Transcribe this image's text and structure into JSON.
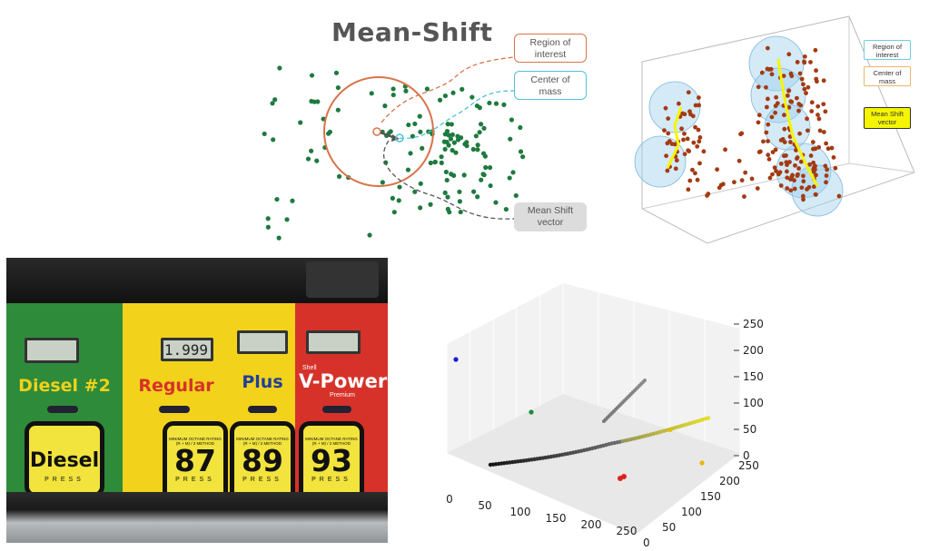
{
  "mean_shift_2d": {
    "title": "Mean-Shift",
    "region_label": "Region of interest",
    "center_label": "Center of mass",
    "vector_label": "Mean Shift vector",
    "colors": {
      "points": "#1e7a3f",
      "region": "#d9734a",
      "center": "#4fc3d6"
    }
  },
  "mean_shift_3d": {
    "legend": [
      "Region of interest",
      "Center of mass",
      "Mean Shift vector"
    ],
    "colors": {
      "points": "#a33a12",
      "spheres": "#9fd0ee",
      "path": "#f5f500"
    }
  },
  "pump": {
    "grades": [
      {
        "name": "Diesel #2",
        "button_main": "Diesel",
        "button_sub": "PRESS",
        "color": "#2e8b3a",
        "display": ""
      },
      {
        "name": "Regular",
        "button_main": "87",
        "button_sub": "PRESS",
        "color": "#f2d21b",
        "display": "1.999"
      },
      {
        "name": "Plus",
        "button_main": "89",
        "button_sub": "PRESS",
        "color": "#f2d21b",
        "display": ""
      },
      {
        "name": "V-Power",
        "button_main": "93",
        "button_sub": "PRESS",
        "color": "#d6322a",
        "display": ""
      }
    ],
    "shell_label": "Shell",
    "premium_label": "Premium",
    "octane_caption": "MINIMUM OCTANE RATING (R + M) / 2 METHOD"
  },
  "chart_data": {
    "type": "scatter",
    "x_ticks": [
      "0",
      "50",
      "100",
      "150",
      "200",
      "250"
    ],
    "y_ticks": [
      "0",
      "50",
      "100",
      "150",
      "200",
      "250"
    ],
    "z_ticks": [
      "0",
      "50",
      "100",
      "150",
      "200",
      "250"
    ],
    "xlim": [
      0,
      250
    ],
    "ylim": [
      0,
      250
    ],
    "zlim": [
      0,
      250
    ],
    "grid": true
  }
}
